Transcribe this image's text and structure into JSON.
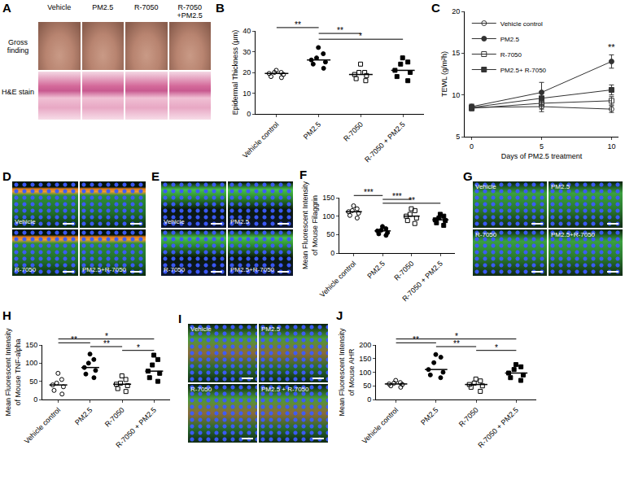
{
  "chart_data": [
    {
      "panel": "B",
      "type": "dot",
      "y_label": "Epidermal Thickness (μm)",
      "categories": [
        "Vehicle control",
        "PM2.5",
        "R-7050",
        "R-7050 + PM2.5"
      ],
      "values": [
        [
          17.5,
          18,
          19,
          19.5,
          20,
          20,
          21
        ],
        [
          22,
          24,
          25,
          26,
          27,
          29,
          32
        ],
        [
          16,
          17,
          18.5,
          19,
          20,
          20,
          24
        ],
        [
          16,
          18,
          20,
          21,
          24,
          25,
          27
        ]
      ],
      "medians": [
        19.5,
        26,
        19,
        21
      ],
      "markers": [
        "circle-open",
        "circle",
        "square-open",
        "square"
      ],
      "ylim": [
        0,
        40
      ],
      "yticks": [
        0,
        10,
        20,
        30,
        40
      ],
      "annotations": [
        {
          "text": "**",
          "between": [
            "Vehicle control",
            "PM2.5"
          ]
        },
        {
          "text": "**",
          "between": [
            "PM2.5",
            "R-7050"
          ]
        },
        {
          "text": "*",
          "between": [
            "PM2.5",
            "R-7050 + PM2.5"
          ]
        }
      ]
    },
    {
      "panel": "C",
      "type": "line",
      "x_label": "Days of PM2.5 treatment",
      "y_label": "TEWL (g/m²h)",
      "x": [
        0,
        5,
        10
      ],
      "series": [
        {
          "name": "Vehicle control",
          "color": "#333333",
          "marker": "circle-open",
          "values": [
            8.5,
            8.6,
            8.3
          ],
          "errors": [
            0.3,
            0.6,
            0.4
          ]
        },
        {
          "name": "PM2.5",
          "color": "#333333",
          "marker": "circle",
          "values": [
            8.6,
            10.3,
            14.0
          ],
          "errors": [
            0.3,
            1.2,
            0.8
          ]
        },
        {
          "name": "R-7050",
          "color": "#333333",
          "marker": "square-open",
          "values": [
            8.4,
            9.0,
            9.3
          ],
          "errors": [
            0.3,
            0.7,
            0.5
          ]
        },
        {
          "name": "PM2.5+ R-7050",
          "color": "#333333",
          "marker": "square",
          "values": [
            8.5,
            9.6,
            10.6
          ],
          "errors": [
            0.3,
            0.8,
            0.6
          ]
        }
      ],
      "xlim": [
        -0.5,
        10.5
      ],
      "xticks": [
        0,
        5,
        10
      ],
      "ylim": [
        5,
        20
      ],
      "yticks": [
        5,
        10,
        15,
        20
      ],
      "legend": "top-left",
      "annotations": [
        {
          "text": "**",
          "x": 10
        }
      ]
    },
    {
      "panel": "F",
      "type": "dot",
      "y_label": "Mean Fluorescent Intensity\nof Mouse Filaggrin",
      "categories": [
        "Vehicle control",
        "PM2.5",
        "R-7050",
        "R-7050 + PM2.5"
      ],
      "values": [
        [
          95,
          102,
          108,
          112,
          115,
          120,
          128
        ],
        [
          48,
          52,
          55,
          60,
          62,
          66,
          72
        ],
        [
          80,
          88,
          95,
          100,
          105,
          115,
          120
        ],
        [
          75,
          82,
          88,
          90,
          95,
          100,
          105
        ]
      ],
      "medians": [
        112,
        60,
        100,
        90
      ],
      "markers": [
        "circle-open",
        "circle",
        "square-open",
        "square"
      ],
      "ylim": [
        0,
        150
      ],
      "yticks": [
        0,
        50,
        100,
        150
      ],
      "annotations": [
        {
          "text": "***",
          "between": [
            "Vehicle control",
            "PM2.5"
          ]
        },
        {
          "text": "***",
          "between": [
            "PM2.5",
            "R-7050"
          ]
        },
        {
          "text": "**",
          "between": [
            "PM2.5",
            "R-7050 + PM2.5"
          ]
        }
      ]
    },
    {
      "panel": "H",
      "type": "dot",
      "y_label": "Mean Fluorescent Intensity\nof Mouse TNF-alpha",
      "categories": [
        "Vehicle control",
        "PM2.5",
        "R-7050",
        "R-7050 + PM2.5"
      ],
      "values": [
        [
          15,
          25,
          35,
          40,
          45,
          55,
          72
        ],
        [
          60,
          70,
          80,
          88,
          100,
          110,
          125
        ],
        [
          22,
          30,
          38,
          42,
          45,
          55,
          65
        ],
        [
          50,
          60,
          72,
          78,
          95,
          110,
          122
        ]
      ],
      "medians": [
        40,
        88,
        42,
        78
      ],
      "markers": [
        "circle-open",
        "circle",
        "square-open",
        "square"
      ],
      "ylim": [
        0,
        150
      ],
      "yticks": [
        0,
        50,
        100,
        150
      ],
      "annotations": [
        {
          "text": "*",
          "between": [
            "Vehicle control",
            "R-7050 + PM2.5"
          ]
        },
        {
          "text": "**",
          "between": [
            "Vehicle control",
            "PM2.5"
          ]
        },
        {
          "text": "**",
          "between": [
            "PM2.5",
            "R-7050"
          ]
        },
        {
          "text": "*",
          "between": [
            "R-7050",
            "R-7050 + PM2.5"
          ]
        }
      ]
    },
    {
      "panel": "J",
      "type": "dot",
      "y_label": "Mean Fluorescent Intensity\nof Mouse AHR",
      "categories": [
        "Vehicle control",
        "PM2.5",
        "R-7050",
        "R-7050 + PM2.5"
      ],
      "values": [
        [
          45,
          50,
          55,
          57,
          60,
          62,
          70
        ],
        [
          80,
          90,
          100,
          110,
          135,
          155,
          165
        ],
        [
          30,
          45,
          50,
          55,
          60,
          68,
          75
        ],
        [
          70,
          80,
          90,
          97,
          110,
          120,
          128
        ]
      ],
      "medians": [
        57,
        110,
        55,
        97
      ],
      "markers": [
        "circle-open",
        "circle",
        "square-open",
        "square"
      ],
      "ylim": [
        0,
        200
      ],
      "yticks": [
        0,
        50,
        100,
        150,
        200
      ],
      "annotations": [
        {
          "text": "*",
          "between": [
            "Vehicle control",
            "R-7050 + PM2.5"
          ]
        },
        {
          "text": "**",
          "between": [
            "Vehicle control",
            "PM2.5"
          ]
        },
        {
          "text": "**",
          "between": [
            "PM2.5",
            "R-7050"
          ]
        },
        {
          "text": "*",
          "between": [
            "R-7050",
            "R-7050 + PM2.5"
          ]
        }
      ]
    }
  ],
  "image_panels": [
    {
      "panel": "A",
      "columns": [
        "Vehicle",
        "PM2.5",
        "R-7050",
        "R-7050\n+PM2.5"
      ],
      "rows": [
        "Gross\nfinding",
        "H&E stain"
      ]
    },
    {
      "panel": "D",
      "labels": [
        "Vehicle",
        null,
        "R-7050",
        "PM2.5+R-7050"
      ]
    },
    {
      "panel": "E",
      "labels": [
        "Vehicle",
        "PM2.5",
        "R-7050",
        "PM2.5+R-7050"
      ]
    },
    {
      "panel": "G",
      "labels": [
        "Vehicle",
        "PM2.5",
        "R-7050",
        "PM2.5+R-7050"
      ]
    },
    {
      "panel": "I",
      "labels": [
        "Vehicle",
        "PM2.5",
        "R-7050",
        "PM2.5 + R-7050"
      ]
    }
  ]
}
